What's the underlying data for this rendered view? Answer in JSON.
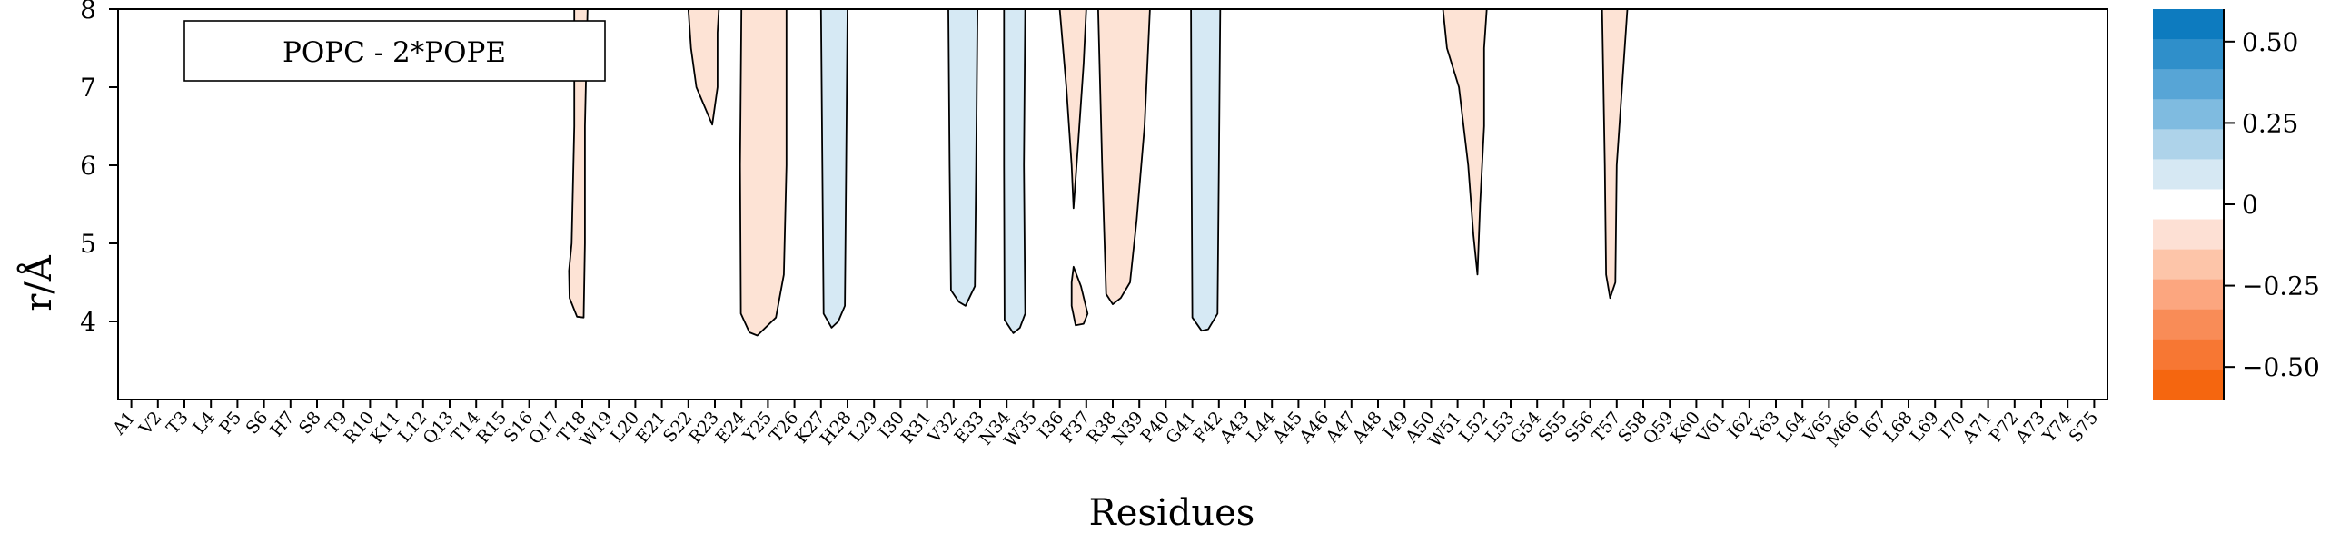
{
  "chart_data": {
    "type": "contour",
    "title": "",
    "legend_box": "POPC - 2*POPE",
    "xlabel": "Residues",
    "ylabel": "r/Å",
    "ylim": [
      3,
      8
    ],
    "yticks": [
      4,
      5,
      6,
      7,
      8
    ],
    "categories": [
      "A1",
      "V2",
      "T3",
      "L4",
      "P5",
      "S6",
      "H7",
      "S8",
      "T9",
      "R10",
      "K11",
      "L12",
      "Q13",
      "T14",
      "R15",
      "S16",
      "Q17",
      "T18",
      "W19",
      "L20",
      "E21",
      "S22",
      "R23",
      "E24",
      "Y25",
      "T26",
      "K27",
      "H28",
      "L29",
      "I30",
      "R31",
      "V32",
      "E33",
      "N34",
      "W35",
      "I36",
      "F37",
      "R38",
      "N39",
      "P40",
      "G41",
      "F42",
      "A43",
      "L44",
      "A45",
      "A46",
      "A47",
      "A48",
      "I49",
      "A50",
      "W51",
      "L52",
      "L53",
      "G54",
      "S55",
      "S56",
      "T57",
      "S58",
      "Q59",
      "K60",
      "V61",
      "I62",
      "Y63",
      "L64",
      "V65",
      "M66",
      "I67",
      "L68",
      "L69",
      "I70",
      "A71",
      "P72",
      "A73",
      "Y74",
      "S75"
    ],
    "regions": [
      {
        "sign": "negative",
        "points": [
          [
            17.7,
            8.0
          ],
          [
            17.7,
            6.5
          ],
          [
            17.6,
            5.0
          ],
          [
            17.5,
            4.65
          ],
          [
            17.52,
            4.3
          ],
          [
            17.8,
            4.06
          ],
          [
            18.05,
            4.05
          ],
          [
            18.1,
            5.0
          ],
          [
            18.1,
            6.5
          ],
          [
            18.2,
            8.0
          ]
        ]
      },
      {
        "sign": "negative",
        "points": [
          [
            22.0,
            8.0
          ],
          [
            22.1,
            7.5
          ],
          [
            22.3,
            7.0
          ],
          [
            22.9,
            6.52
          ],
          [
            23.1,
            7.0
          ],
          [
            23.1,
            7.7
          ],
          [
            23.15,
            8.0
          ]
        ]
      },
      {
        "sign": "negative",
        "points": [
          [
            24.0,
            8.0
          ],
          [
            23.95,
            6.0
          ],
          [
            23.98,
            4.1
          ],
          [
            24.3,
            3.86
          ],
          [
            24.6,
            3.82
          ],
          [
            25.3,
            4.05
          ],
          [
            25.6,
            4.6
          ],
          [
            25.7,
            6.0
          ],
          [
            25.7,
            8.0
          ]
        ]
      },
      {
        "sign": "positive",
        "points": [
          [
            27.0,
            8.0
          ],
          [
            27.05,
            6.0
          ],
          [
            27.1,
            4.1
          ],
          [
            27.4,
            3.92
          ],
          [
            27.65,
            4.0
          ],
          [
            27.9,
            4.2
          ],
          [
            27.95,
            6.0
          ],
          [
            28.0,
            8.0
          ]
        ]
      },
      {
        "sign": "positive",
        "points": [
          [
            31.8,
            8.0
          ],
          [
            31.85,
            6.0
          ],
          [
            31.9,
            4.4
          ],
          [
            32.2,
            4.25
          ],
          [
            32.45,
            4.2
          ],
          [
            32.8,
            4.45
          ],
          [
            32.85,
            6.0
          ],
          [
            32.9,
            8.0
          ]
        ]
      },
      {
        "sign": "positive",
        "points": [
          [
            33.9,
            8.0
          ],
          [
            33.9,
            6.0
          ],
          [
            33.92,
            4.02
          ],
          [
            34.25,
            3.85
          ],
          [
            34.5,
            3.92
          ],
          [
            34.7,
            4.1
          ],
          [
            34.65,
            6.0
          ],
          [
            34.7,
            8.0
          ]
        ]
      },
      {
        "sign": "negative",
        "points": [
          [
            36.0,
            8.0
          ],
          [
            36.25,
            7.0
          ],
          [
            36.45,
            6.0
          ],
          [
            36.52,
            5.45
          ],
          [
            36.7,
            6.3
          ],
          [
            36.9,
            7.3
          ],
          [
            37.0,
            8.0
          ]
        ]
      },
      {
        "sign": "negative",
        "points": [
          [
            36.52,
            4.7
          ],
          [
            36.8,
            4.45
          ],
          [
            37.05,
            4.1
          ],
          [
            36.9,
            3.97
          ],
          [
            36.6,
            3.95
          ],
          [
            36.45,
            4.2
          ],
          [
            36.45,
            4.5
          ]
        ]
      },
      {
        "sign": "negative",
        "points": [
          [
            37.45,
            8.0
          ],
          [
            37.6,
            6.0
          ],
          [
            37.75,
            4.35
          ],
          [
            38.0,
            4.22
          ],
          [
            38.3,
            4.3
          ],
          [
            38.65,
            4.5
          ],
          [
            38.9,
            5.3
          ],
          [
            39.2,
            6.5
          ],
          [
            39.4,
            8.0
          ]
        ]
      },
      {
        "sign": "positive",
        "points": [
          [
            40.95,
            8.0
          ],
          [
            40.97,
            6.0
          ],
          [
            41.0,
            4.05
          ],
          [
            41.35,
            3.88
          ],
          [
            41.6,
            3.9
          ],
          [
            41.95,
            4.1
          ],
          [
            42.0,
            6.0
          ],
          [
            42.05,
            8.0
          ]
        ]
      },
      {
        "sign": "negative",
        "points": [
          [
            50.45,
            8.0
          ],
          [
            50.6,
            7.5
          ],
          [
            51.05,
            7.0
          ],
          [
            51.4,
            6.0
          ],
          [
            51.6,
            5.1
          ],
          [
            51.75,
            4.6
          ],
          [
            51.85,
            5.5
          ],
          [
            52.0,
            6.5
          ],
          [
            52.0,
            7.5
          ],
          [
            52.1,
            8.0
          ]
        ]
      },
      {
        "sign": "negative",
        "points": [
          [
            56.45,
            8.0
          ],
          [
            56.5,
            7.0
          ],
          [
            56.55,
            6.0
          ],
          [
            56.6,
            4.6
          ],
          [
            56.75,
            4.3
          ],
          [
            56.95,
            4.5
          ],
          [
            57.0,
            6.0
          ],
          [
            57.4,
            8.0
          ]
        ]
      }
    ],
    "colorbar": {
      "range": [
        -0.6,
        0.6
      ],
      "ticks": [
        0.5,
        0.25,
        0,
        -0.25,
        -0.5
      ],
      "tick_labels": [
        "0.50",
        "0.25",
        "0",
        "−0.25",
        "−0.50"
      ],
      "level_colors": [
        "#0d7bbf",
        "#2f8fca",
        "#57a5d6",
        "#7fbbe0",
        "#aed3ea",
        "#d6e8f3",
        "#ffffff",
        "#fde0d4",
        "#fdc5a9",
        "#fca67f",
        "#f98c57",
        "#f77733",
        "#f5660f"
      ],
      "negative_fill": "#fde3d5",
      "positive_fill": "#d6e9f4"
    }
  }
}
